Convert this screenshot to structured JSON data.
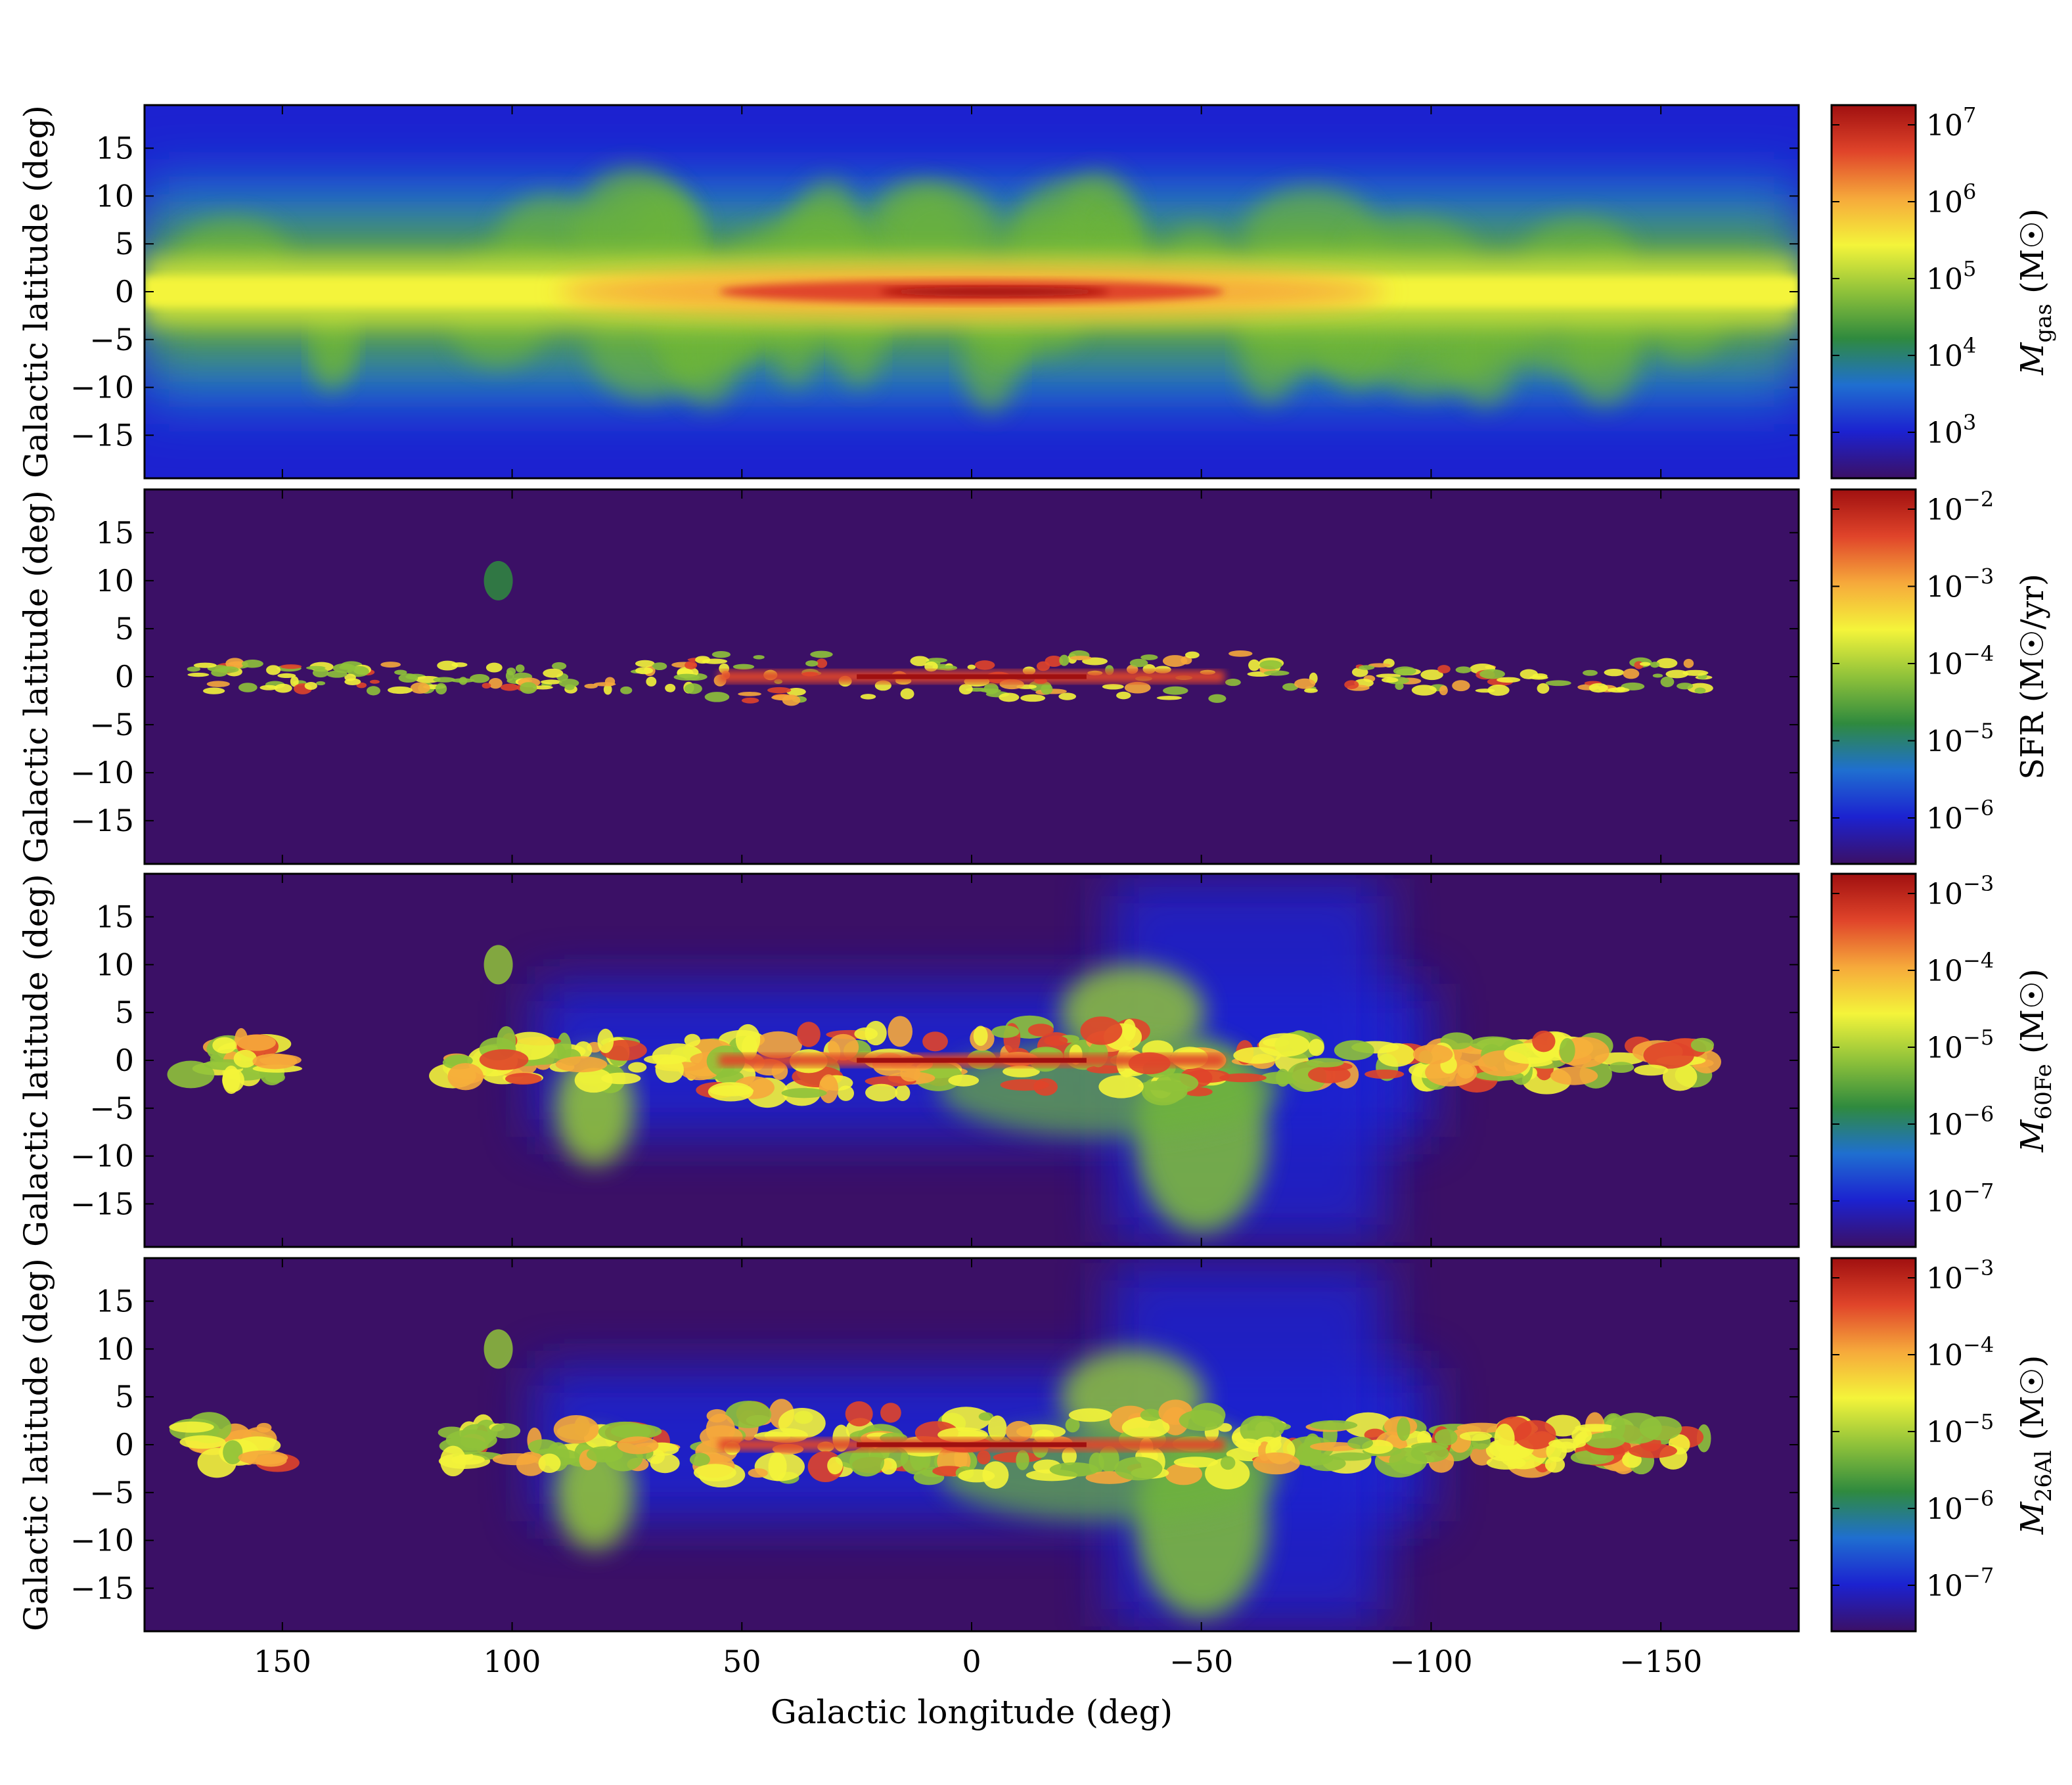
{
  "chart_data": {
    "type": "heatmap",
    "xlabel": "Galactic longitude (deg)",
    "xlim": [
      180,
      -180
    ],
    "xticks": [
      -150,
      -100,
      -50,
      0,
      50,
      100,
      150
    ],
    "ylim": [
      -19.5,
      19.5
    ],
    "panels": [
      {
        "ylabel": "Galactic latitude (deg)",
        "yticks": [
          15,
          10,
          5,
          0,
          -5,
          -10,
          -15
        ],
        "colorbar": {
          "label": "M_gas (M☉)",
          "label_main": "M",
          "label_sub": "gas",
          "label_unit": "(M☉)",
          "scale": "log",
          "range": [
            200,
            20000000
          ],
          "ticks": [
            "10^7",
            "10^6",
            "10^5",
            "10^4",
            "10^3"
          ]
        },
        "features": "Bright disk band along latitude 0, peak near longitude 0; green/yellow halo to about ±10 deg; blue background at high latitude"
      },
      {
        "ylabel": "Galactic latitude (deg)",
        "yticks": [
          15,
          10,
          5,
          0,
          -5,
          -10,
          -15
        ],
        "colorbar": {
          "label": "SFR (M☉/yr)",
          "label_main": "SFR",
          "label_sub": "",
          "label_unit": "(M☉/yr)",
          "scale": "log",
          "range": [
            2e-07,
            0.02
          ],
          "ticks": [
            "10^-2",
            "10^-3",
            "10^-4",
            "10^-5",
            "10^-6"
          ]
        },
        "features": "Thin patchy star-forming band along latitude 0 between about -150 and 170 deg; isolated clumps near (100, 10)"
      },
      {
        "ylabel": "Galactic latitude (deg)",
        "yticks": [
          15,
          10,
          5,
          0,
          -5,
          -10,
          -15
        ],
        "colorbar": {
          "label": "M_60Fe (M☉)",
          "label_main": "M",
          "label_sub": "60Fe",
          "label_unit": "(M☉)",
          "scale": "log",
          "range": [
            2e-08,
            0.002
          ],
          "ticks": [
            "10^-3",
            "10^-4",
            "10^-5",
            "10^-6",
            "10^-7"
          ]
        },
        "features": "Clumpy band along latitude 0 with broad green plumes extending to negative latitude near longitude -50 and positive longitude 30-40"
      },
      {
        "ylabel": "Galactic latitude (deg)",
        "yticks": [
          15,
          10,
          5,
          0,
          -5,
          -10,
          -15
        ],
        "colorbar": {
          "label": "M_26Al (M☉)",
          "label_main": "M",
          "label_sub": "26Al",
          "label_unit": "(M☉)",
          "scale": "log",
          "range": [
            2e-08,
            0.002
          ],
          "ticks": [
            "10^-3",
            "10^-4",
            "10^-5",
            "10^-6",
            "10^-7"
          ]
        },
        "features": "Similar to 60Fe map: clumpy band along latitude 0 with plumes toward negative latitude near longitude -50"
      }
    ],
    "colormap": [
      "#3b1066",
      "#1c22d0",
      "#1f6fd0",
      "#2f8a3e",
      "#8fc23a",
      "#f4f43a",
      "#f6a93b",
      "#e0442a",
      "#a01010"
    ]
  }
}
